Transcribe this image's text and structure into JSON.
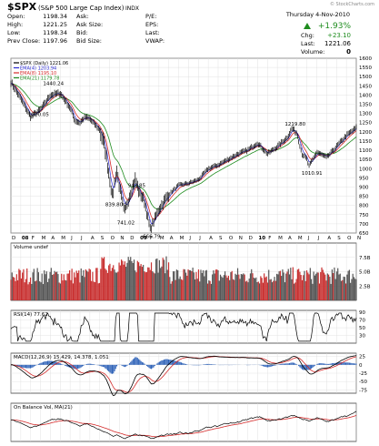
{
  "header": {
    "symbol": "$SPX",
    "name": "(S&P 500 Large Cap Index)",
    "exchange": "INDX",
    "watermark": "© StockCharts.com",
    "date": "Thursday  4-Nov-2010",
    "pct_change": "+1.93%",
    "chg_label": "Chg:",
    "chg_value": "+23.10",
    "last_label": "Last:",
    "last_value": "1221.06",
    "vol_label": "Volume:",
    "vol_value": "0",
    "quote_rows": [
      {
        "l1": "Open:",
        "v1": "1198.34",
        "l2": "Ask:",
        "v2": "",
        "l3": "P/E:"
      },
      {
        "l1": "High:",
        "v1": "1221.25",
        "l2": "Ask Size:",
        "v2": "",
        "l3": "EPS:"
      },
      {
        "l1": "Low:",
        "v1": "1198.34",
        "l2": "Bid:",
        "v2": "",
        "l3": "Last:"
      },
      {
        "l1": "Prev Close:",
        "v1": "1197.96",
        "l2": "Bid Size:",
        "v2": "",
        "l3": "VWAP:"
      }
    ]
  },
  "colors": {
    "up": "#1e8c1e",
    "price": "#000000",
    "ema4": "#2a2ad4",
    "ema8": "#d42a2a",
    "ema21": "#1e8c1e",
    "macd_hist": "#2e62b8",
    "grid": "#dcdcdc"
  },
  "price_panel": {
    "legend": [
      {
        "name": "$SPX (Daily) 1221.06",
        "color": "#000000"
      },
      {
        "name": "EMA(4) 1203.94",
        "color": "#2a2ad4"
      },
      {
        "name": "EMA(8) 1195.10",
        "color": "#d42a2a"
      },
      {
        "name": "EMA(21) 1179.78",
        "color": "#1e8c1e"
      }
    ],
    "ylim": [
      650,
      1600
    ],
    "y_ticks": [
      650,
      700,
      750,
      800,
      850,
      900,
      950,
      1000,
      1050,
      1100,
      1150,
      1200,
      1250,
      1300,
      1350,
      1400,
      1450,
      1500,
      1550,
      1600
    ],
    "annotations": [
      {
        "text": "1440.24",
        "x": 4,
        "y": 1440.24
      },
      {
        "text": "1270.05",
        "x": 2.5,
        "y": 1270.05
      },
      {
        "text": "839.80",
        "x": 10.3,
        "y": 839.8
      },
      {
        "text": "943.85",
        "x": 12.6,
        "y": 943.85
      },
      {
        "text": "741.02",
        "x": 11.5,
        "y": 741.02
      },
      {
        "text": "666.79",
        "x": 14.1,
        "y": 666.79
      },
      {
        "text": "1219.80",
        "x": 28.5,
        "y": 1219.8
      },
      {
        "text": "1010.91",
        "x": 30.2,
        "y": 1010.91
      }
    ],
    "x_labels": [
      "D",
      "08",
      "F",
      "M",
      "A",
      "M",
      "J",
      "J",
      "A",
      "S",
      "O",
      "N",
      "D",
      "09",
      "F",
      "M",
      "A",
      "M",
      "J",
      "J",
      "A",
      "S",
      "O",
      "N",
      "D",
      "10",
      "F",
      "M",
      "A",
      "M",
      "J",
      "J",
      "A",
      "S",
      "O",
      "N"
    ]
  },
  "volume_panel": {
    "legend": "Volume undef",
    "y_ticks": [
      "2.5B",
      "5.0B",
      "7.5B"
    ],
    "ylim": [
      0,
      10
    ]
  },
  "rsi_panel": {
    "legend": "RSI(14) 77.62",
    "y_ticks": [
      30,
      50,
      70,
      90
    ],
    "ylim": [
      10,
      95
    ]
  },
  "macd_panel": {
    "legend": "MACD(12,26,9) 15.429, 14.378, 1.051",
    "y_ticks": [
      -75,
      -50,
      -25,
      0,
      25
    ],
    "ylim": [
      -85,
      35
    ]
  },
  "obv_panel": {
    "legend": "On Balance Vol, MA(21)",
    "y_ticks": []
  },
  "chart_data": {
    "type": "line",
    "title": "$SPX (Daily) 1221.06",
    "x_unit": "months since Dec 2007",
    "x_range": [
      0,
      35
    ],
    "series": [
      {
        "name": "$SPX (Daily) 1221.06",
        "x": [
          0,
          1,
          1.5,
          2,
          3,
          4,
          5,
          6,
          6.5,
          7,
          7.5,
          8,
          8.5,
          9,
          9.5,
          10,
          10.3,
          10.7,
          11,
          11.5,
          12,
          12.6,
          13,
          13.5,
          14,
          14.1,
          15,
          16,
          17,
          18,
          19,
          20,
          21,
          22,
          23,
          24,
          25,
          26,
          27,
          28,
          28.5,
          29,
          29.5,
          30,
          30.2,
          31,
          32,
          33,
          34,
          35
        ],
        "y": [
          1470,
          1380,
          1330,
          1280,
          1320,
          1400,
          1410,
          1330,
          1260,
          1250,
          1280,
          1270,
          1240,
          1210,
          1120,
          950,
          839.8,
          1000,
          900,
          760,
          850,
          943.85,
          870,
          830,
          700,
          666.79,
          780,
          860,
          910,
          920,
          940,
          1000,
          1020,
          1050,
          1080,
          1100,
          1140,
          1080,
          1120,
          1170,
          1219.8,
          1190,
          1080,
          1050,
          1010.91,
          1090,
          1060,
          1120,
          1180,
          1221.06
        ]
      }
    ]
  }
}
